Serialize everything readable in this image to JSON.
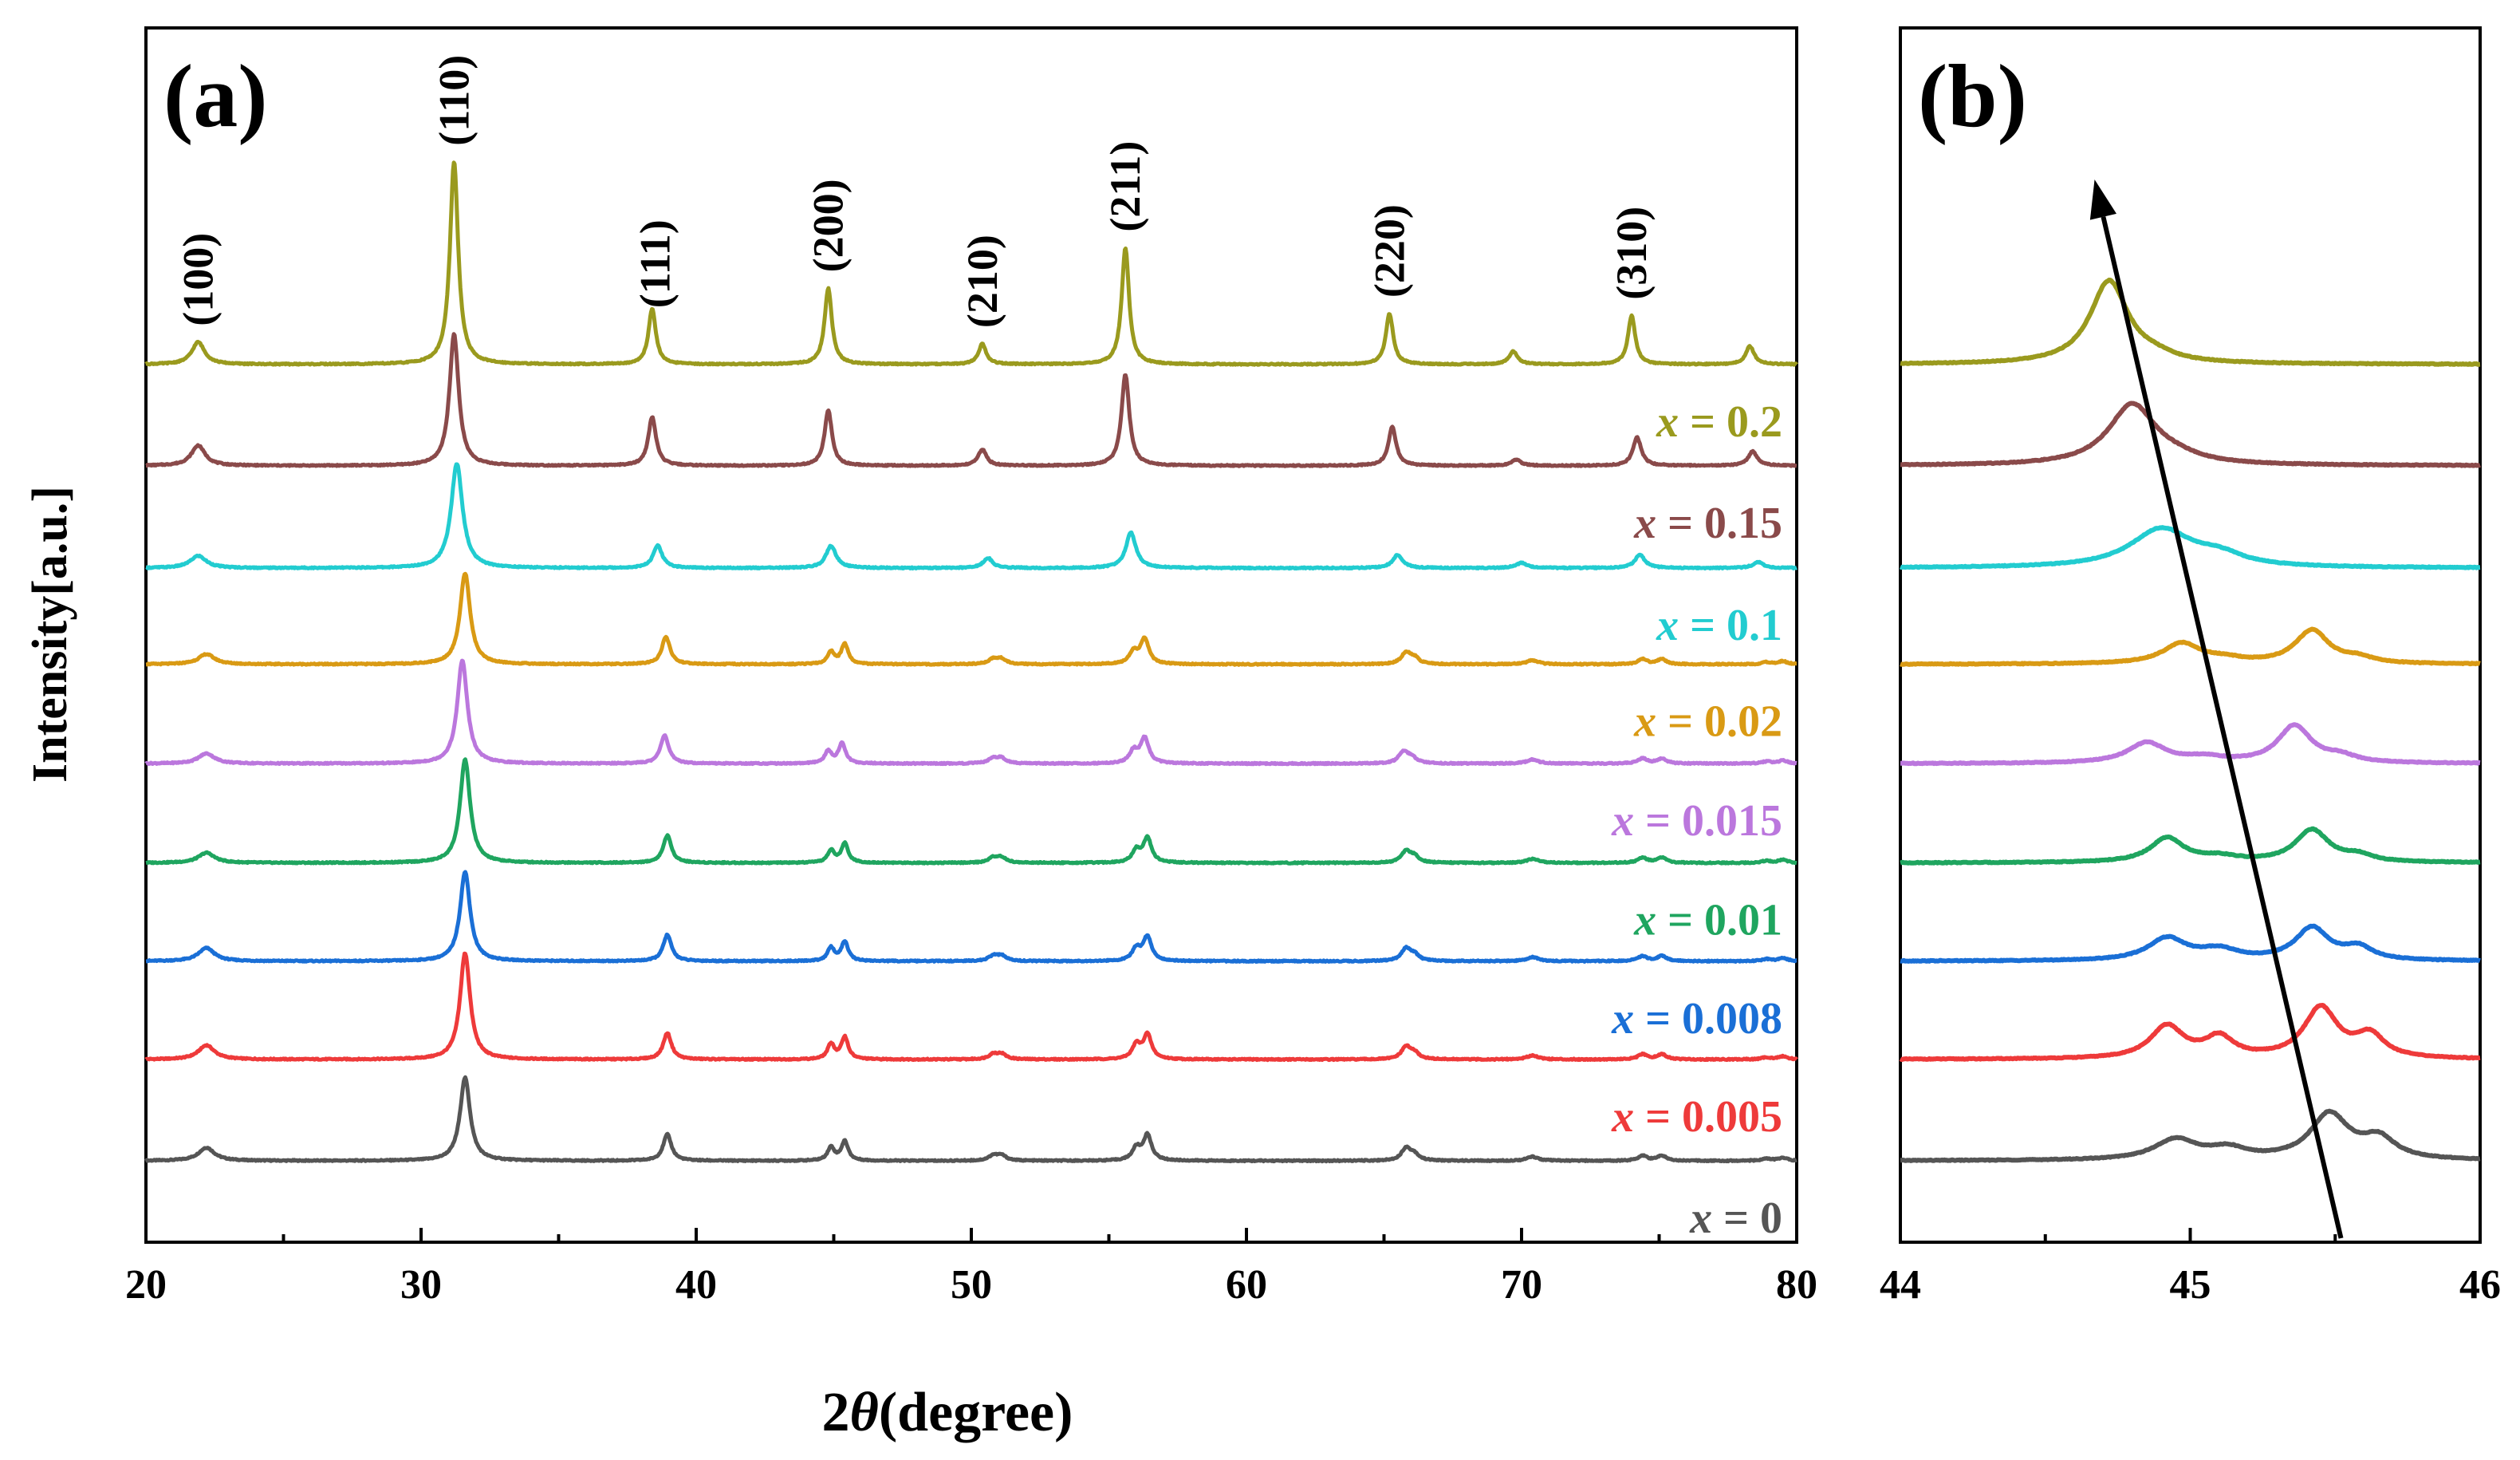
{
  "chart_data": [
    {
      "panel": "a",
      "type": "line",
      "panel_label": "(a)",
      "xlabel_prefix": "2",
      "xlabel_symbol": "θ",
      "xlabel_suffix": "(degree)",
      "ylabel": "Intensity[a.u.]",
      "xlim": [
        20,
        80
      ],
      "xticks": [
        20,
        30,
        40,
        50,
        60,
        70,
        80
      ],
      "xtick_labels": [
        "20",
        "30",
        "40",
        "50",
        "60",
        "70",
        "80"
      ],
      "peak_labels": [
        {
          "label": "(100)",
          "x": 21.9
        },
        {
          "label": "(110)",
          "x": 31.2
        },
        {
          "label": "(111)",
          "x": 38.5
        },
        {
          "label": "(200)",
          "x": 44.8
        },
        {
          "label": "(210)",
          "x": 50.4
        },
        {
          "label": "(211)",
          "x": 55.6
        },
        {
          "label": "(220)",
          "x": 65.2
        },
        {
          "label": "(310)",
          "x": 74.0
        }
      ],
      "series": [
        {
          "x_symbol": "x",
          "label_rest": " = 0",
          "color": "#555555",
          "baseline": 0.0,
          "peaks": [
            [
              22.2,
              0.13,
              0.35
            ],
            [
              31.6,
              0.82,
              0.22
            ],
            [
              38.95,
              0.26,
              0.18
            ],
            [
              44.9,
              0.13,
              0.15
            ],
            [
              45.4,
              0.19,
              0.15
            ],
            [
              50.8,
              0.05,
              0.2
            ],
            [
              51.1,
              0.05,
              0.2
            ],
            [
              56.0,
              0.12,
              0.18
            ],
            [
              56.4,
              0.25,
              0.18
            ],
            [
              65.8,
              0.12,
              0.2
            ],
            [
              66.1,
              0.06,
              0.2
            ],
            [
              70.4,
              0.04,
              0.25
            ],
            [
              74.4,
              0.05,
              0.2
            ],
            [
              75.1,
              0.05,
              0.2
            ],
            [
              78.9,
              0.02,
              0.2
            ],
            [
              79.5,
              0.03,
              0.2
            ]
          ]
        },
        {
          "x_symbol": "x",
          "label_rest": " = 0.005",
          "color": "#ee3a3a",
          "baseline": 1.0,
          "peaks": [
            [
              22.2,
              0.14,
              0.35
            ],
            [
              31.6,
              1.05,
              0.22
            ],
            [
              38.95,
              0.26,
              0.18
            ],
            [
              44.9,
              0.15,
              0.15
            ],
            [
              45.4,
              0.22,
              0.15
            ],
            [
              50.8,
              0.05,
              0.2
            ],
            [
              51.1,
              0.05,
              0.2
            ],
            [
              56.0,
              0.14,
              0.18
            ],
            [
              56.4,
              0.24,
              0.18
            ],
            [
              65.8,
              0.12,
              0.2
            ],
            [
              66.1,
              0.06,
              0.2
            ],
            [
              70.4,
              0.04,
              0.25
            ],
            [
              74.4,
              0.05,
              0.2
            ],
            [
              75.1,
              0.05,
              0.2
            ],
            [
              78.9,
              0.02,
              0.2
            ],
            [
              79.5,
              0.03,
              0.2
            ]
          ]
        },
        {
          "x_symbol": "x",
          "label_rest": " = 0.008",
          "color": "#1a6fd6",
          "baseline": 1.97,
          "peaks": [
            [
              22.2,
              0.13,
              0.35
            ],
            [
              31.6,
              0.88,
              0.22
            ],
            [
              38.95,
              0.26,
              0.18
            ],
            [
              44.9,
              0.13,
              0.15
            ],
            [
              45.4,
              0.19,
              0.15
            ],
            [
              50.8,
              0.05,
              0.2
            ],
            [
              51.1,
              0.05,
              0.2
            ],
            [
              56.0,
              0.12,
              0.18
            ],
            [
              56.4,
              0.24,
              0.18
            ],
            [
              65.8,
              0.12,
              0.2
            ],
            [
              66.1,
              0.06,
              0.2
            ],
            [
              70.4,
              0.04,
              0.25
            ],
            [
              74.4,
              0.05,
              0.2
            ],
            [
              75.1,
              0.05,
              0.2
            ],
            [
              78.9,
              0.02,
              0.2
            ],
            [
              79.5,
              0.03,
              0.2
            ]
          ]
        },
        {
          "x_symbol": "x",
          "label_rest": " = 0.01",
          "color": "#1fa55f",
          "baseline": 2.94,
          "peaks": [
            [
              22.2,
              0.1,
              0.35
            ],
            [
              31.6,
              1.02,
              0.22
            ],
            [
              38.95,
              0.27,
              0.18
            ],
            [
              44.9,
              0.12,
              0.15
            ],
            [
              45.4,
              0.19,
              0.15
            ],
            [
              50.8,
              0.05,
              0.2
            ],
            [
              51.1,
              0.05,
              0.2
            ],
            [
              56.0,
              0.12,
              0.18
            ],
            [
              56.4,
              0.24,
              0.18
            ],
            [
              65.8,
              0.11,
              0.2
            ],
            [
              66.1,
              0.06,
              0.2
            ],
            [
              70.4,
              0.04,
              0.25
            ],
            [
              74.4,
              0.05,
              0.2
            ],
            [
              75.1,
              0.05,
              0.2
            ],
            [
              78.9,
              0.02,
              0.2
            ],
            [
              79.5,
              0.03,
              0.2
            ]
          ]
        },
        {
          "x_symbol": "x",
          "label_rest": " = 0.015",
          "color": "#bb77dd",
          "baseline": 3.92,
          "peaks": [
            [
              22.2,
              0.1,
              0.35
            ],
            [
              31.5,
              1.02,
              0.22
            ],
            [
              38.85,
              0.28,
              0.18
            ],
            [
              44.8,
              0.12,
              0.15
            ],
            [
              45.3,
              0.2,
              0.15
            ],
            [
              50.8,
              0.05,
              0.2
            ],
            [
              51.1,
              0.05,
              0.2
            ],
            [
              55.9,
              0.12,
              0.18
            ],
            [
              56.3,
              0.25,
              0.18
            ],
            [
              65.7,
              0.11,
              0.2
            ],
            [
              66.0,
              0.06,
              0.2
            ],
            [
              70.4,
              0.04,
              0.25
            ],
            [
              74.4,
              0.05,
              0.2
            ],
            [
              75.1,
              0.05,
              0.2
            ],
            [
              78.9,
              0.02,
              0.2
            ],
            [
              79.5,
              0.03,
              0.2
            ]
          ]
        },
        {
          "x_symbol": "x",
          "label_rest": " = 0.02",
          "color": "#d99a14",
          "baseline": 4.9,
          "peaks": [
            [
              22.2,
              0.1,
              0.35
            ],
            [
              31.6,
              0.9,
              0.22
            ],
            [
              38.9,
              0.27,
              0.18
            ],
            [
              44.9,
              0.12,
              0.15
            ],
            [
              45.4,
              0.2,
              0.15
            ],
            [
              50.8,
              0.05,
              0.2
            ],
            [
              51.1,
              0.05,
              0.2
            ],
            [
              55.9,
              0.12,
              0.18
            ],
            [
              56.3,
              0.25,
              0.18
            ],
            [
              65.8,
              0.11,
              0.2
            ],
            [
              66.1,
              0.06,
              0.2
            ],
            [
              70.4,
              0.04,
              0.25
            ],
            [
              74.4,
              0.05,
              0.2
            ],
            [
              75.1,
              0.05,
              0.2
            ],
            [
              78.9,
              0.02,
              0.2
            ],
            [
              79.5,
              0.03,
              0.2
            ]
          ]
        },
        {
          "x_symbol": "x",
          "label_rest": " = 0.1",
          "color": "#22ccd0",
          "baseline": 5.85,
          "peaks": [
            [
              21.9,
              0.12,
              0.35
            ],
            [
              31.3,
              1.03,
              0.25
            ],
            [
              38.6,
              0.22,
              0.2
            ],
            [
              44.9,
              0.22,
              0.22
            ],
            [
              50.6,
              0.1,
              0.2
            ],
            [
              55.8,
              0.35,
              0.22
            ],
            [
              65.5,
              0.13,
              0.22
            ],
            [
              70.0,
              0.05,
              0.25
            ],
            [
              74.3,
              0.13,
              0.22
            ],
            [
              78.6,
              0.06,
              0.22
            ]
          ]
        },
        {
          "x_symbol": "x",
          "label_rest": " = 0.15",
          "color": "#8a4a4a",
          "baseline": 6.86,
          "peaks": [
            [
              21.9,
              0.2,
              0.3
            ],
            [
              31.2,
              1.3,
              0.2
            ],
            [
              38.4,
              0.48,
              0.17
            ],
            [
              44.8,
              0.55,
              0.16
            ],
            [
              50.4,
              0.16,
              0.18
            ],
            [
              55.6,
              0.9,
              0.17
            ],
            [
              65.3,
              0.38,
              0.17
            ],
            [
              69.8,
              0.06,
              0.2
            ],
            [
              74.2,
              0.28,
              0.18
            ],
            [
              78.4,
              0.14,
              0.2
            ]
          ]
        },
        {
          "x_symbol": "x",
          "label_rest": " = 0.2",
          "color": "#9a9a1e",
          "baseline": 7.86,
          "peaks": [
            [
              21.9,
              0.22,
              0.28
            ],
            [
              31.2,
              2.0,
              0.18
            ],
            [
              38.4,
              0.55,
              0.16
            ],
            [
              44.8,
              0.75,
              0.16
            ],
            [
              50.4,
              0.2,
              0.17
            ],
            [
              55.6,
              1.15,
              0.16
            ],
            [
              65.2,
              0.5,
              0.16
            ],
            [
              69.7,
              0.13,
              0.18
            ],
            [
              74.0,
              0.48,
              0.16
            ],
            [
              78.3,
              0.18,
              0.18
            ]
          ]
        }
      ]
    },
    {
      "panel": "b",
      "type": "line",
      "panel_label": "(b)",
      "xlim": [
        44,
        46
      ],
      "xticks": [
        44,
        45,
        46
      ],
      "xtick_labels": [
        "44",
        "45",
        "46"
      ],
      "arrow": {
        "from_x": 45.52,
        "to_x": 44.67
      },
      "series": [
        {
          "color": "#555555",
          "baseline": 0.0,
          "peaks": [
            [
              44.95,
              0.2,
              0.09
            ],
            [
              45.13,
              0.1,
              0.08
            ],
            [
              45.48,
              0.45,
              0.08
            ],
            [
              45.65,
              0.2,
              0.07
            ]
          ]
        },
        {
          "color": "#ee3a3a",
          "baseline": 1.0,
          "peaks": [
            [
              44.92,
              0.32,
              0.07
            ],
            [
              45.1,
              0.2,
              0.06
            ],
            [
              45.45,
              0.5,
              0.07
            ],
            [
              45.62,
              0.22,
              0.06
            ]
          ]
        },
        {
          "color": "#1a6fd6",
          "baseline": 1.97,
          "peaks": [
            [
              44.92,
              0.22,
              0.08
            ],
            [
              45.1,
              0.1,
              0.08
            ],
            [
              45.42,
              0.32,
              0.07
            ],
            [
              45.58,
              0.12,
              0.06
            ]
          ]
        },
        {
          "color": "#1fa55f",
          "baseline": 2.94,
          "peaks": [
            [
              44.92,
              0.24,
              0.07
            ],
            [
              45.1,
              0.05,
              0.08
            ],
            [
              45.42,
              0.32,
              0.07
            ],
            [
              45.58,
              0.06,
              0.06
            ]
          ]
        },
        {
          "color": "#bb77dd",
          "baseline": 3.92,
          "peaks": [
            [
              44.85,
              0.2,
              0.08
            ],
            [
              45.05,
              0.05,
              0.08
            ],
            [
              45.36,
              0.37,
              0.07
            ],
            [
              45.52,
              0.06,
              0.06
            ]
          ]
        },
        {
          "color": "#d99a14",
          "baseline": 4.9,
          "peaks": [
            [
              44.97,
              0.2,
              0.08
            ],
            [
              45.12,
              0.04,
              0.08
            ],
            [
              45.42,
              0.33,
              0.07
            ],
            [
              45.58,
              0.05,
              0.06
            ]
          ]
        },
        {
          "color": "#22ccd0",
          "baseline": 5.85,
          "peaks": [
            [
              44.9,
              0.38,
              0.13
            ],
            [
              45.1,
              0.1,
              0.1
            ]
          ]
        },
        {
          "color": "#8a4a4a",
          "baseline": 6.86,
          "peaks": [
            [
              44.8,
              0.6,
              0.1
            ],
            [
              44.95,
              0.05,
              0.1
            ]
          ]
        },
        {
          "color": "#9a9a1e",
          "baseline": 7.86,
          "peaks": [
            [
              44.72,
              0.82,
              0.08
            ],
            [
              44.88,
              0.05,
              0.08
            ]
          ]
        }
      ]
    }
  ]
}
